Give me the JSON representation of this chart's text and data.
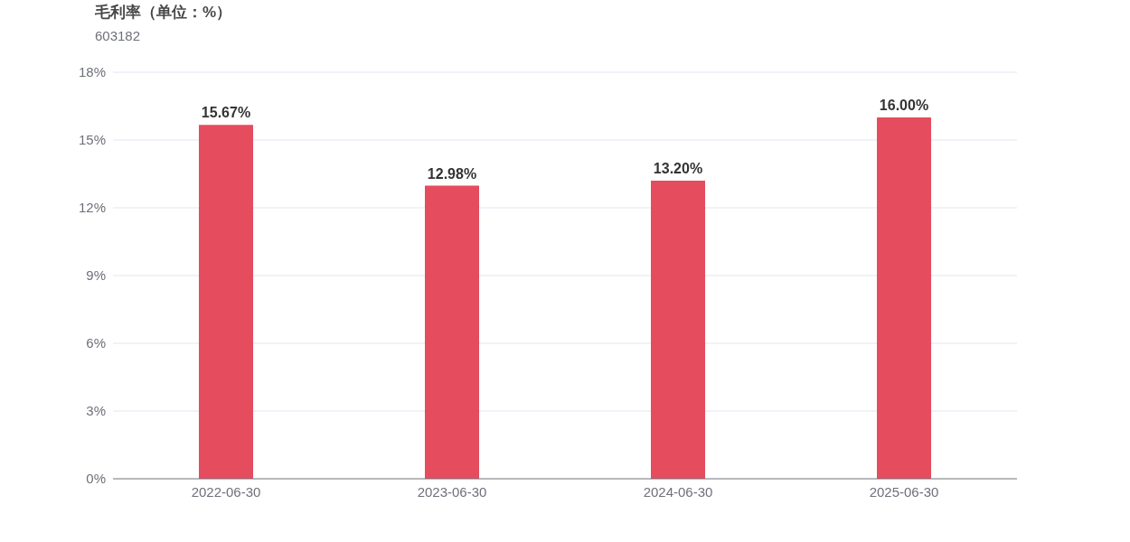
{
  "chart_data": {
    "type": "bar",
    "title": "毛利率（单位：%）",
    "subtitle": "603182",
    "categories": [
      "2022-06-30",
      "2023-06-30",
      "2024-06-30",
      "2025-06-30"
    ],
    "values": [
      15.67,
      12.98,
      13.2,
      16.0
    ],
    "value_labels": [
      "15.67%",
      "12.98%",
      "13.20%",
      "16.00%"
    ],
    "color": "#e54c5e",
    "ylim": [
      0,
      18
    ],
    "yticks": [
      {
        "value": 0,
        "label": "0%"
      },
      {
        "value": 3,
        "label": "3%"
      },
      {
        "value": 6,
        "label": "6%"
      },
      {
        "value": 9,
        "label": "9%"
      },
      {
        "value": 12,
        "label": "12%"
      },
      {
        "value": 15,
        "label": "15%"
      },
      {
        "value": 18,
        "label": "18%"
      }
    ],
    "grid": "y"
  }
}
